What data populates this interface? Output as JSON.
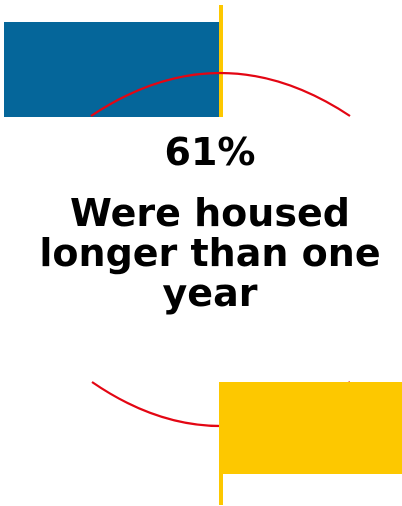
{
  "stat": {
    "value": "61%",
    "label_lines": [
      "Were housed",
      "longer than one",
      "year"
    ]
  },
  "colors": {
    "blue_block": "#05669a",
    "yellow_block": "#fdc800",
    "divider": "#fdc800",
    "arc": "#e30613",
    "text": "#000000"
  }
}
